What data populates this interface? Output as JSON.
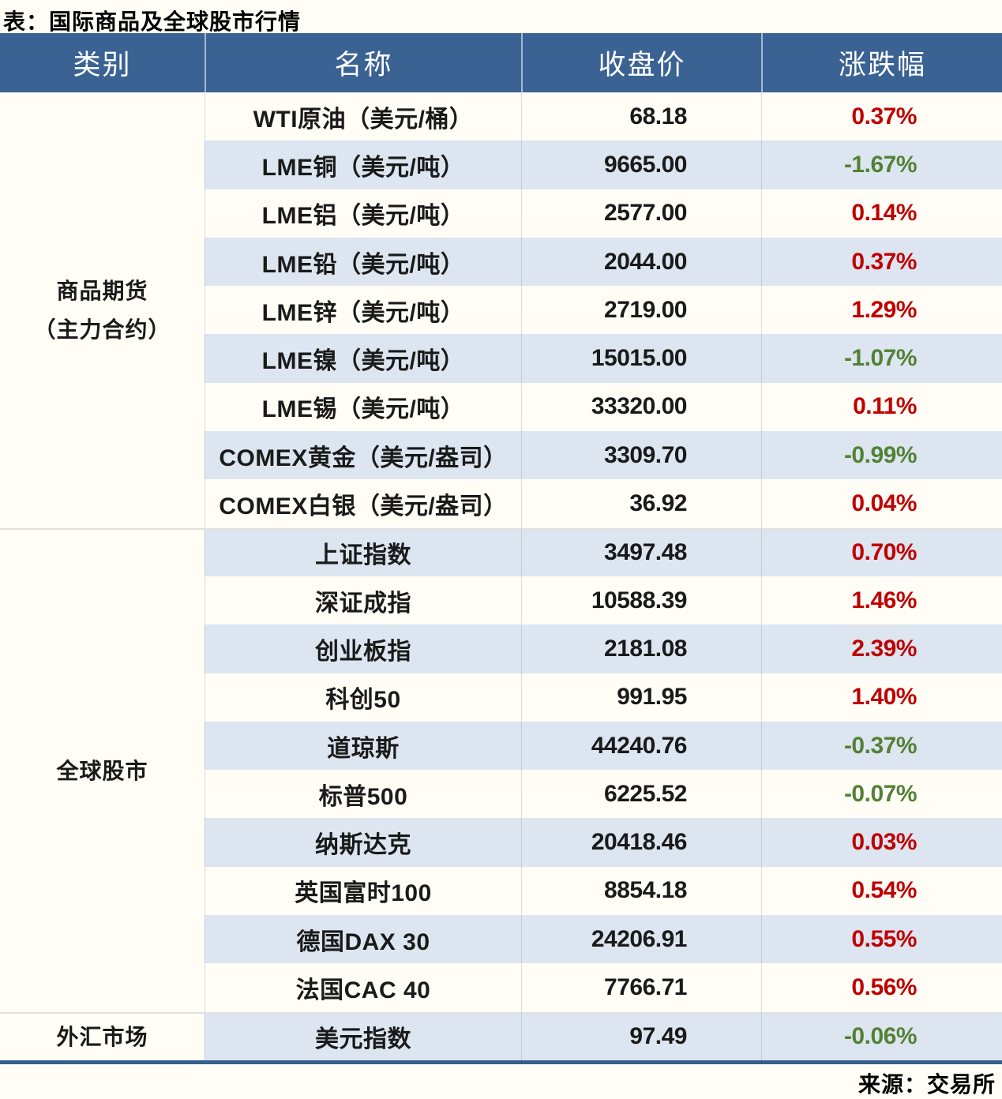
{
  "title": "表：国际商品及全球股市行情",
  "source": "来源：交易所",
  "colors": {
    "header_bg": "#3a6292",
    "row_stripe_bg": "#dce5f0",
    "row_bg": "#fffdf6",
    "positive_change": "#c00000",
    "negative_change": "#538135",
    "bottom_border": "#34608f"
  },
  "chart_data": {
    "type": "table",
    "title": "表：国际商品及全球股市行情",
    "columns": [
      "类别",
      "名称",
      "收盘价",
      "涨跌幅"
    ],
    "groups": [
      {
        "category_lines": [
          "商品期货",
          "（主力合约）"
        ],
        "rows": [
          {
            "name": "WTI原油（美元/桶）",
            "close": "68.18",
            "change": "0.37%"
          },
          {
            "name": "LME铜（美元/吨）",
            "close": "9665.00",
            "change": "-1.67%"
          },
          {
            "name": "LME铝（美元/吨）",
            "close": "2577.00",
            "change": "0.14%"
          },
          {
            "name": "LME铅（美元/吨）",
            "close": "2044.00",
            "change": "0.37%"
          },
          {
            "name": "LME锌（美元/吨）",
            "close": "2719.00",
            "change": "1.29%"
          },
          {
            "name": "LME镍（美元/吨）",
            "close": "15015.00",
            "change": "-1.07%"
          },
          {
            "name": "LME锡（美元/吨）",
            "close": "33320.00",
            "change": "0.11%"
          },
          {
            "name": "COMEX黄金（美元/盎司）",
            "close": "3309.70",
            "change": "-0.99%"
          },
          {
            "name": "COMEX白银（美元/盎司）",
            "close": "36.92",
            "change": "0.04%"
          }
        ]
      },
      {
        "category_lines": [
          "全球股市"
        ],
        "rows": [
          {
            "name": "上证指数",
            "close": "3497.48",
            "change": "0.70%"
          },
          {
            "name": "深证成指",
            "close": "10588.39",
            "change": "1.46%"
          },
          {
            "name": "创业板指",
            "close": "2181.08",
            "change": "2.39%"
          },
          {
            "name": "科创50",
            "close": "991.95",
            "change": "1.40%"
          },
          {
            "name": "道琼斯",
            "close": "44240.76",
            "change": "-0.37%"
          },
          {
            "name": "标普500",
            "close": "6225.52",
            "change": "-0.07%"
          },
          {
            "name": "纳斯达克",
            "close": "20418.46",
            "change": "0.03%"
          },
          {
            "name": "英国富时100",
            "close": "8854.18",
            "change": "0.54%"
          },
          {
            "name": "德国DAX 30",
            "close": "24206.91",
            "change": "0.55%"
          },
          {
            "name": "法国CAC 40",
            "close": "7766.71",
            "change": "0.56%"
          }
        ]
      },
      {
        "category_lines": [
          "外汇市场"
        ],
        "rows": [
          {
            "name": "美元指数",
            "close": "97.49",
            "change": "-0.06%"
          }
        ]
      }
    ]
  }
}
